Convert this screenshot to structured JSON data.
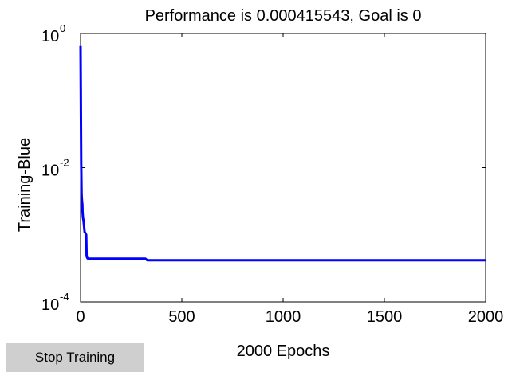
{
  "stop_button_label": "Stop Training",
  "chart_data": {
    "type": "line",
    "title": "Performance is 0.000415543, Goal is 0",
    "xlabel": "2000 Epochs",
    "ylabel": "Training-Blue",
    "xlim": [
      0,
      2000
    ],
    "ylim": [
      0.0001,
      1
    ],
    "yscale": "log",
    "x_ticks": [
      "0",
      "500",
      "1000",
      "1500",
      "2000"
    ],
    "y_ticks": [
      {
        "value": 1,
        "base": "10",
        "exp": "0"
      },
      {
        "value": 0.01,
        "base": "10",
        "exp": "-2"
      },
      {
        "value": 0.0001,
        "base": "10",
        "exp": "-4"
      }
    ],
    "grid": false,
    "series": [
      {
        "color": "#0000ff",
        "x": [
          0,
          1,
          2,
          3,
          5,
          7,
          9,
          10,
          12,
          15,
          20,
          25,
          28,
          30,
          32,
          35,
          40,
          50,
          100,
          200,
          320,
          330,
          500,
          1000,
          1500,
          2000
        ],
        "y": [
          0.65,
          0.15,
          0.05,
          0.012,
          0.004,
          0.0032,
          0.0028,
          0.0022,
          0.0018,
          0.0016,
          0.0011,
          0.00105,
          0.001,
          0.00048,
          0.00046,
          0.000445,
          0.00044,
          0.00044,
          0.00044,
          0.00044,
          0.00044,
          0.000416,
          0.000416,
          0.000416,
          0.000416,
          0.000416
        ]
      }
    ]
  }
}
